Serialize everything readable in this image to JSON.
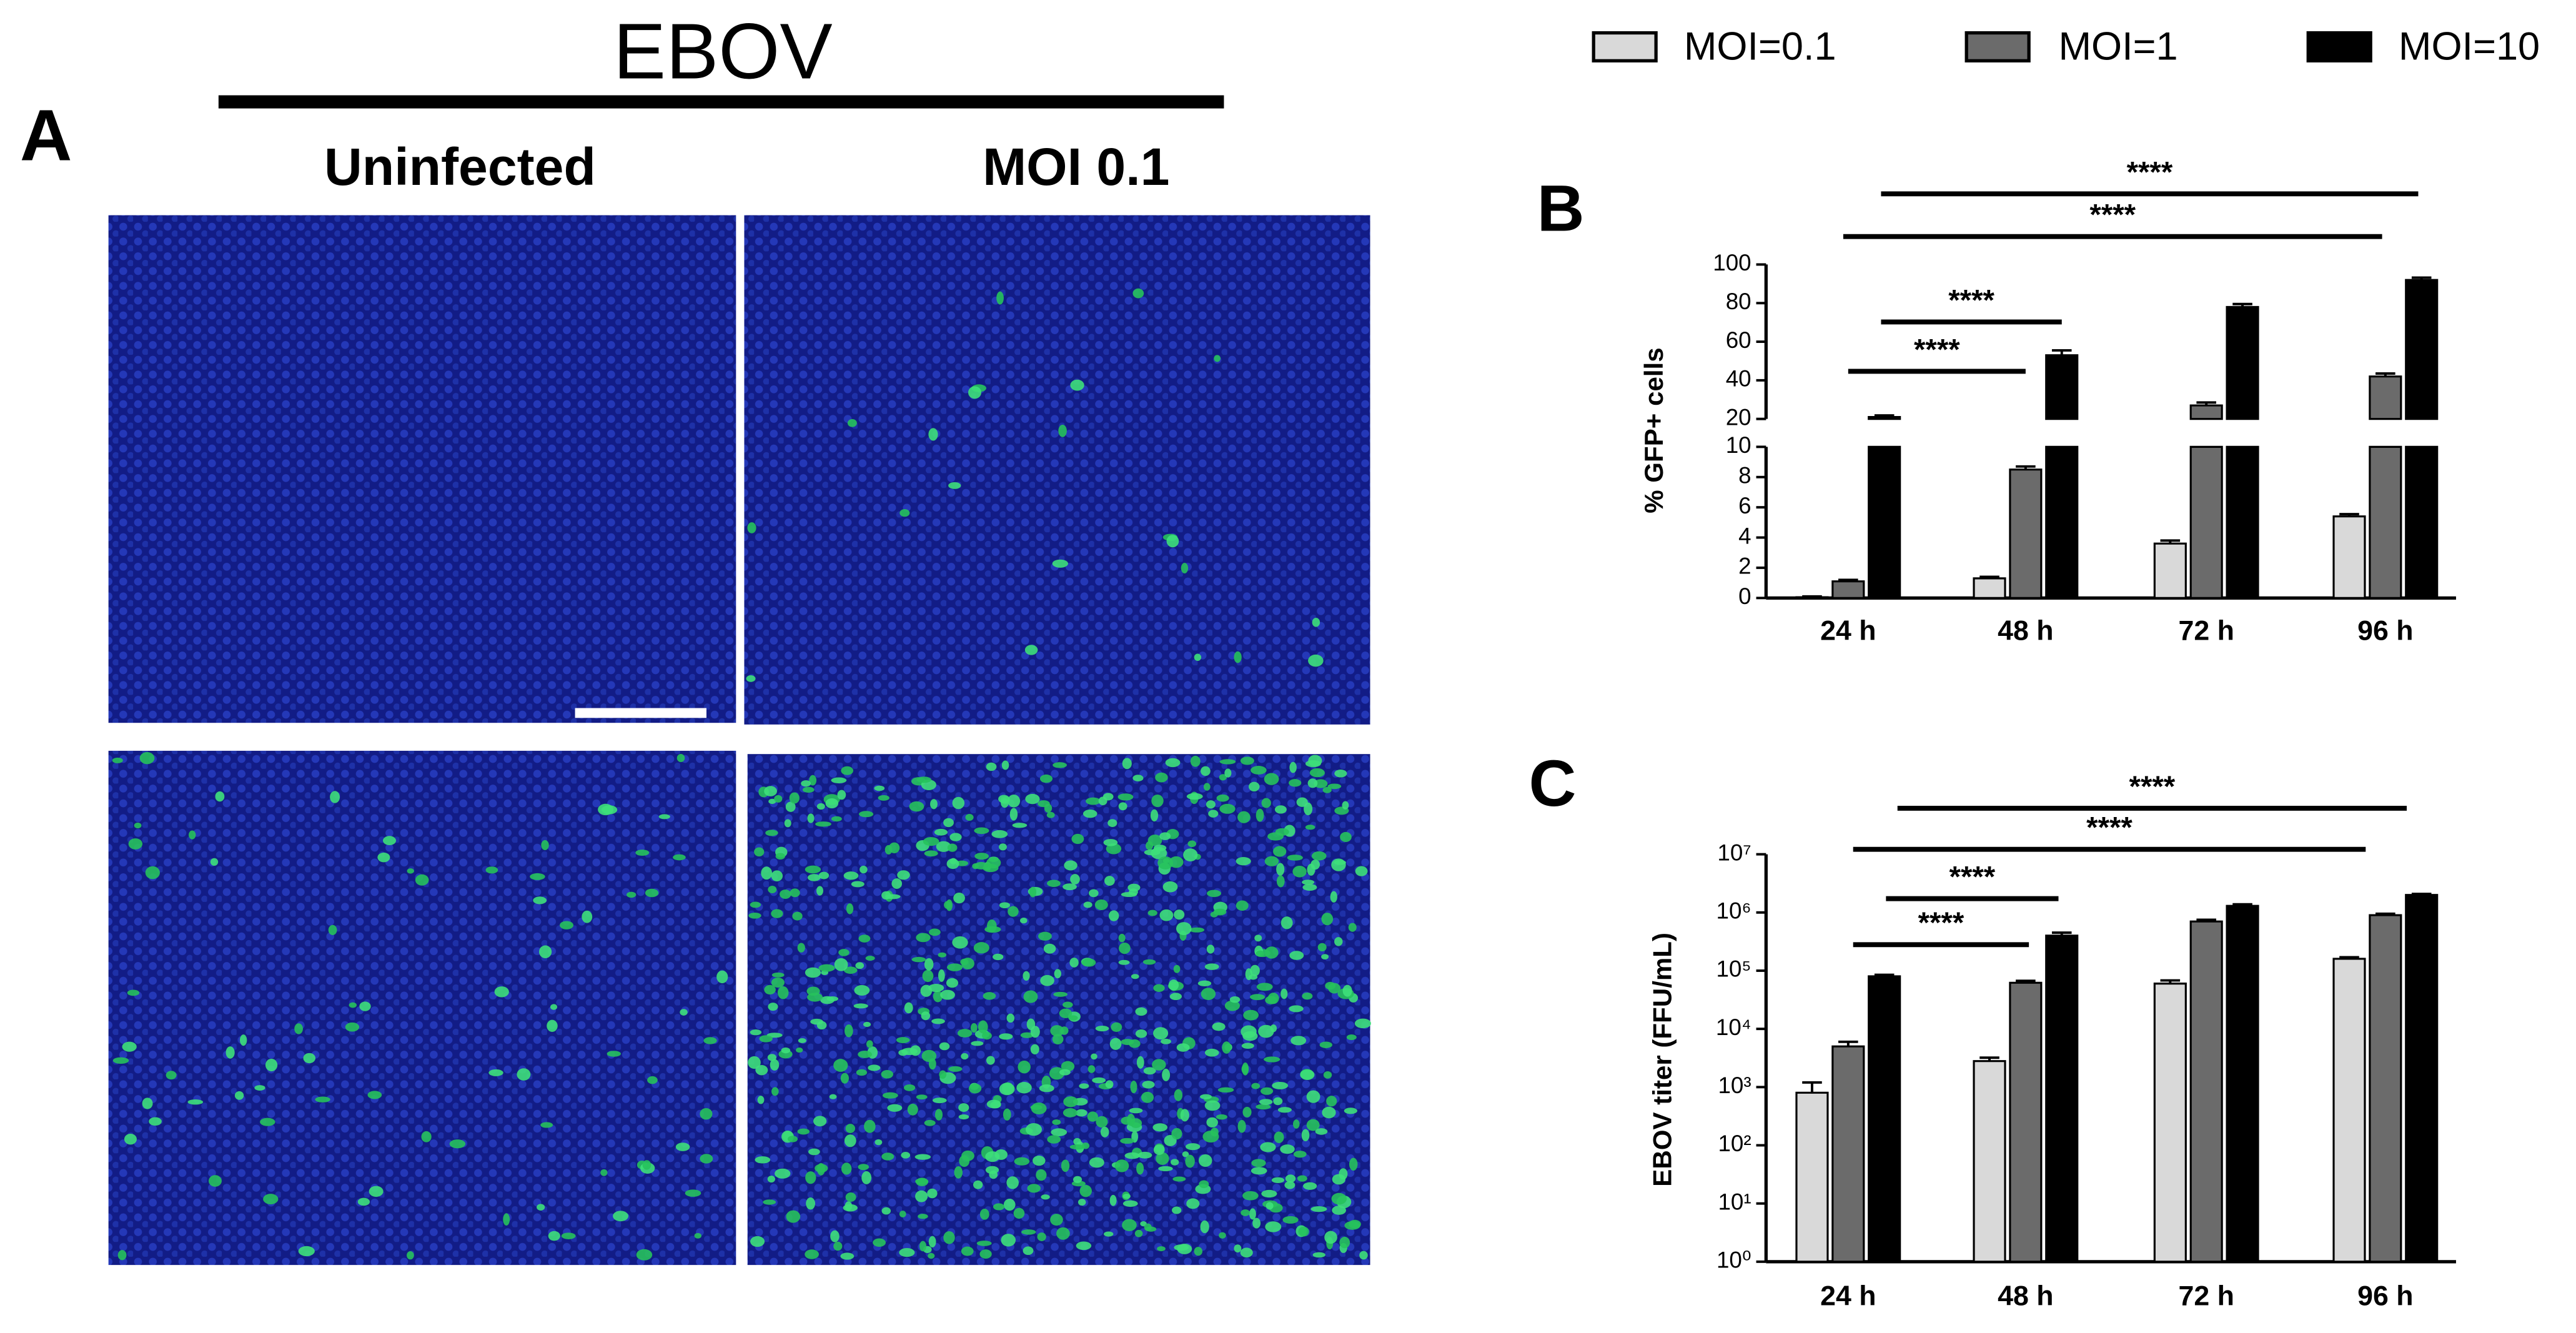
{
  "figure": {
    "title": "EBOV",
    "panel_label": "A",
    "columns": [
      "Uninfected",
      "MOI 0.1"
    ]
  },
  "chart_data": [
    {
      "type": "bar",
      "panel_label": "B",
      "y_label": "% GFP+ cells",
      "categories": [
        "24 h",
        "48 h",
        "72 h",
        "96 h"
      ],
      "series": [
        {
          "name": "MOI=0.1",
          "color": "#d9d9d9",
          "values": [
            0.05,
            1.3,
            3.6,
            5.4
          ],
          "errors": [
            0.05,
            0.1,
            0.2,
            0.15
          ]
        },
        {
          "name": "MOI=1",
          "color": "#6b6b6b",
          "values": [
            1.1,
            8.5,
            27,
            42
          ],
          "errors": [
            0.1,
            0.2,
            1.5,
            1.5
          ]
        },
        {
          "name": "MOI=10",
          "color": "#000000",
          "values": [
            21,
            53,
            78,
            92
          ],
          "errors": [
            0.8,
            2.5,
            1.5,
            1.2
          ]
        }
      ],
      "ylim": [
        0,
        100
      ],
      "y_break": [
        10,
        20
      ],
      "yticks": [
        0,
        2,
        4,
        6,
        8,
        10,
        20,
        40,
        60,
        80,
        100
      ],
      "annotations": [
        "****",
        "****",
        "****",
        "****"
      ]
    },
    {
      "type": "bar",
      "panel_label": "C",
      "y_label": "EBOV titer (FFU/mL)",
      "categories": [
        "24 h",
        "48 h",
        "72 h",
        "96 h"
      ],
      "log_scale": true,
      "series": [
        {
          "color": "#d9d9d9",
          "values": [
            800,
            2800,
            60000,
            160000
          ],
          "errors": [
            400,
            400,
            8000,
            10000
          ]
        },
        {
          "color": "#6b6b6b",
          "values": [
            5000,
            62000,
            700000,
            900000
          ],
          "errors": [
            1000,
            5000,
            50000,
            50000
          ]
        },
        {
          "color": "#000000",
          "values": [
            80000,
            400000,
            1300000,
            2000000
          ],
          "errors": [
            5000,
            50000,
            80000,
            80000
          ]
        }
      ],
      "ylim": [
        1,
        10000000
      ],
      "yticks": [
        {
          "value": 1,
          "label": "10⁰"
        },
        {
          "value": 10,
          "label": "10¹"
        },
        {
          "value": 100,
          "label": "10²"
        },
        {
          "value": 1000,
          "label": "10³"
        },
        {
          "value": 10000,
          "label": "10⁴"
        },
        {
          "value": 100000,
          "label": "10⁵"
        },
        {
          "value": 1000000,
          "label": "10⁶"
        },
        {
          "value": 10000000,
          "label": "10⁷"
        }
      ],
      "annotations": [
        "****",
        "****",
        "****",
        "****"
      ]
    }
  ]
}
